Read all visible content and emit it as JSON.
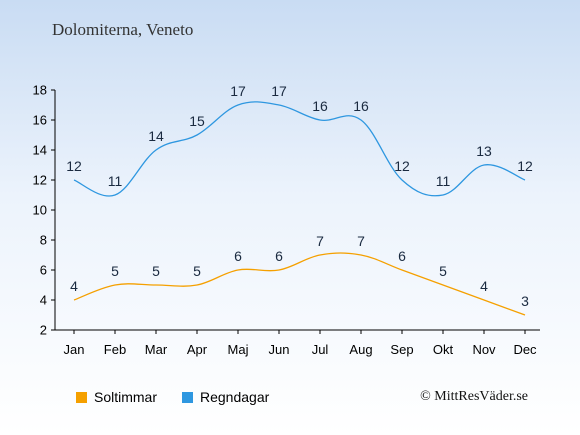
{
  "title": "Dolomiterna, Veneto",
  "credit": "© MittResVäder.se",
  "chart_data": {
    "type": "line",
    "categories": [
      "Jan",
      "Feb",
      "Mar",
      "Apr",
      "Maj",
      "Jun",
      "Jul",
      "Aug",
      "Sep",
      "Okt",
      "Nov",
      "Dec"
    ],
    "series": [
      {
        "name": "Soltimmar",
        "color": "#f5a000",
        "values": [
          4,
          5,
          5,
          5,
          6,
          6,
          7,
          7,
          6,
          5,
          4,
          3
        ]
      },
      {
        "name": "Regndagar",
        "color": "#2e97e0",
        "values": [
          12,
          11,
          14,
          15,
          17,
          17,
          16,
          16,
          12,
          11,
          13,
          12
        ]
      }
    ],
    "yticks": [
      2,
      4,
      6,
      8,
      10,
      12,
      14,
      16,
      18
    ],
    "ylim": [
      2,
      18
    ],
    "grid": false,
    "legend": "bottom-left"
  }
}
